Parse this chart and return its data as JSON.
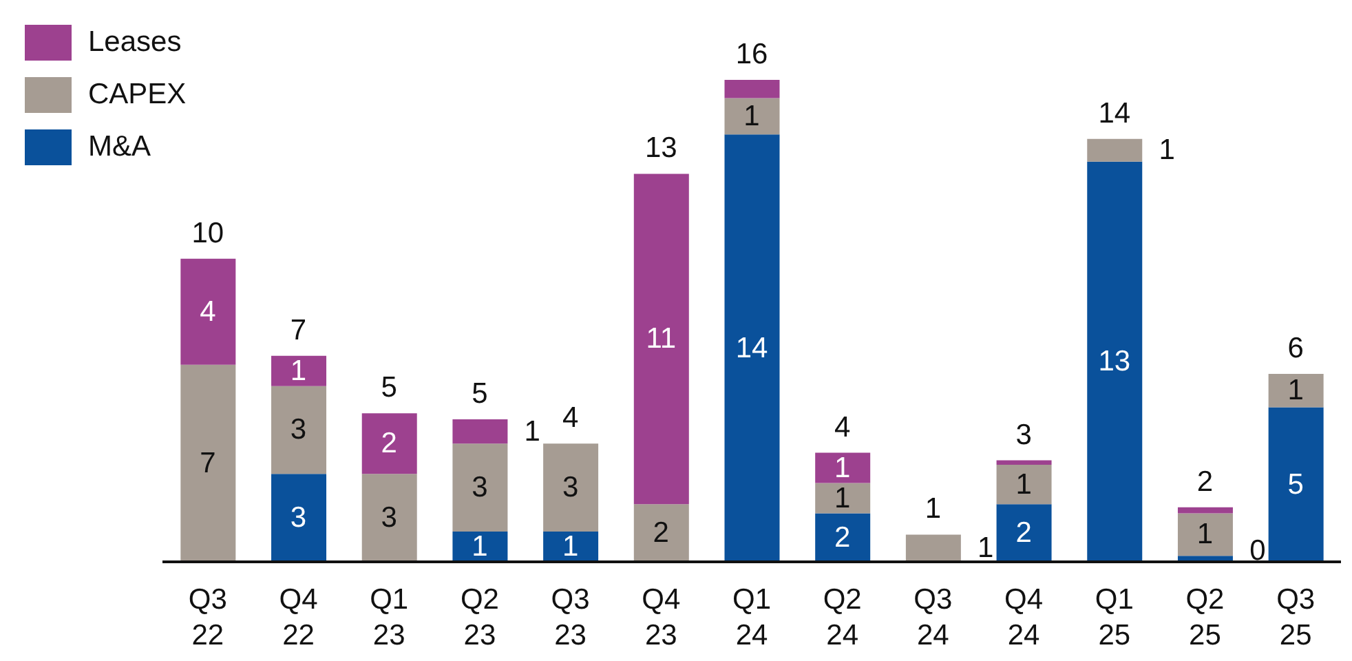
{
  "chart_data": {
    "type": "bar",
    "stacked": true,
    "legend": "top left",
    "tick_labels": "x",
    "categories": [
      "Q3\n22",
      "Q4\n22",
      "Q1\n23",
      "Q2\n23",
      "Q3\n23",
      "Q4\n23",
      "Q1\n24",
      "Q2\n24",
      "Q3\n24",
      "Q4\n24",
      "Q1\n25",
      "Q2\n25",
      "Q3\n25"
    ],
    "series": [
      {
        "name": "M&A",
        "color": "#0a519b",
        "values": [
          null,
          2.9,
          null,
          1.0,
          1.0,
          null,
          14.1,
          1.6,
          null,
          1.9,
          13.2,
          0.2,
          5.1
        ],
        "value_labels": [
          null,
          "3",
          null,
          "1",
          "1",
          null,
          "14",
          "2",
          null,
          "2",
          "13",
          "0",
          "5"
        ]
      },
      {
        "name": "CAPEX",
        "color": "#a69c93",
        "values": [
          6.5,
          2.9,
          2.9,
          2.9,
          2.9,
          1.9,
          1.2,
          1.0,
          0.9,
          1.3,
          0.75,
          1.4,
          1.1
        ],
        "value_labels": [
          "7",
          "3",
          "3",
          "3",
          "3",
          "2",
          "1",
          "1",
          "1",
          "1",
          "1",
          "1",
          "1"
        ]
      },
      {
        "name": "Leases",
        "color": "#9d418f",
        "values": [
          3.5,
          1.0,
          2.0,
          0.8,
          null,
          10.9,
          0.6,
          1.0,
          null,
          0.15,
          null,
          0.2,
          null
        ],
        "value_labels": [
          "4",
          "1",
          "2",
          "1",
          null,
          "11",
          null,
          "1",
          null,
          null,
          null,
          null,
          null
        ]
      }
    ],
    "totals": [
      "10",
      "7",
      "5",
      "5",
      "4",
      "13",
      "16",
      "4",
      "1",
      "3",
      "14",
      "2",
      "6"
    ]
  }
}
